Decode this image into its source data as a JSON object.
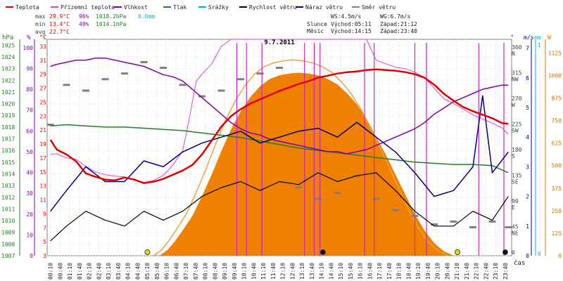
{
  "chart_data": {
    "type": "line",
    "title": "9.7.2011",
    "xlabel": "čas",
    "x_ticks": [
      "00:10",
      "00:40",
      "01:10",
      "01:40",
      "02:10",
      "02:40",
      "03:10",
      "03:40",
      "04:10",
      "04:40",
      "05:10",
      "05:40",
      "06:10",
      "06:40",
      "07:10",
      "07:40",
      "08:10",
      "08:40",
      "09:10",
      "09:40",
      "10:10",
      "10:40",
      "11:10",
      "11:40",
      "12:10",
      "12:40",
      "13:10",
      "13:40",
      "14:10",
      "14:40",
      "15:10",
      "15:40",
      "16:10",
      "16:40",
      "17:10",
      "17:40",
      "18:10",
      "18:40",
      "19:10",
      "19:40",
      "20:10",
      "20:40",
      "21:10",
      "21:40",
      "22:10",
      "22:40",
      "23:10",
      "23:40"
    ],
    "legend": [
      {
        "name": "Teplota",
        "color": "#e00000"
      },
      {
        "name": "Přízemní teplota",
        "color": "#e040e0"
      },
      {
        "name": "Vlhkost",
        "color": "#8000b0"
      },
      {
        "name": "Tlak",
        "color": "#208020"
      },
      {
        "name": "Srážky",
        "color": "#00b0d0"
      },
      {
        "name": "Rychlost větru",
        "color": "#000000"
      },
      {
        "name": "Náraz větru",
        "color": "#000080"
      },
      {
        "name": "Směr větru",
        "color": "#808080"
      }
    ],
    "stats": {
      "max": {
        "label": "max",
        "temp": "29.9°C",
        "hum": "96%",
        "press": "1018.2hPa",
        "rain": "0.0mm"
      },
      "min": {
        "label": "min",
        "temp": "13.4°C",
        "hum": "49%",
        "press": "1014.1hPa"
      },
      "avg": {
        "label": "avg",
        "temp": "22.7°C"
      }
    },
    "wind_info": {
      "ws": "WS:4.5m/s",
      "wg": "WG:6.7m/s"
    },
    "sun": {
      "label": "Slunce",
      "rise": "Východ:05:11",
      "set": "Západ:21:12"
    },
    "moon": {
      "label": "Měsíc",
      "rise": "Východ:14:15",
      "set": "Západ:23:40"
    },
    "axes": {
      "hpa": {
        "label": "hPa",
        "ticks": [
          "1025",
          "1024",
          "1023",
          "1022",
          "1021",
          "1020",
          "1019",
          "1018",
          "1017",
          "1016",
          "1015",
          "1014",
          "1013",
          "1012",
          "1011",
          "1010",
          "1009",
          "1008",
          "1007"
        ],
        "range": [
          1007,
          1025.5
        ],
        "color": "#208020"
      },
      "pct": {
        "label": "%",
        "ticks": [
          "100",
          "90",
          "80",
          "70",
          "60",
          "50",
          "40",
          "30",
          "20",
          "10",
          "0"
        ],
        "range": [
          0,
          104
        ],
        "color": "#8000b0"
      },
      "degc": {
        "label": "°C",
        "ticks": [
          "33",
          "31",
          "29",
          "27",
          "25",
          "23",
          "21",
          "19",
          "17",
          "15",
          "13",
          "11",
          "9",
          "7",
          "5",
          "3"
        ],
        "range": [
          3,
          34
        ],
        "color": "#e00000"
      },
      "dir": {
        "label": "°",
        "ticks": [
          {
            "v": "360",
            "d": "N"
          },
          {
            "v": "315",
            "d": "NW"
          },
          {
            "v": "270",
            "d": "W"
          },
          {
            "v": "225",
            "d": "SW"
          },
          {
            "v": "180",
            "d": "S"
          },
          {
            "v": "135",
            "d": "SE"
          },
          {
            "v": "90",
            "d": "E"
          },
          {
            "v": "45",
            "d": "NE"
          },
          {
            "v": "0",
            "d": ""
          }
        ],
        "range": [
          0,
          380
        ],
        "color": "#404040"
      },
      "ms": {
        "label": "m/s",
        "ticks": [
          "7",
          "6",
          "5",
          "4",
          "3",
          "2",
          "1",
          "0"
        ],
        "range": [
          0,
          7.3
        ],
        "color": "#000080"
      },
      "mm": {
        "label": "mm",
        "ticks": [
          "1",
          "0"
        ],
        "color": "#00b0d0"
      },
      "wm2": {
        "label": "W",
        "ticks": [
          "1125",
          "1000",
          "875",
          "750",
          "625",
          "500",
          "375",
          "250",
          "125",
          "0"
        ],
        "range": [
          0,
          1200
        ],
        "color": "#e07000"
      }
    },
    "solar_curve_color": "#f4a040",
    "solar_fill_color": "#f08000",
    "series": {
      "temperature_c": [
        [
          0.17,
          19.6
        ],
        [
          0.5,
          18.2
        ],
        [
          1,
          17.5
        ],
        [
          1.5,
          16.5
        ],
        [
          2,
          14.8
        ],
        [
          2.5,
          14.3
        ],
        [
          3,
          13.9
        ],
        [
          3.5,
          13.8
        ],
        [
          4,
          14.2
        ],
        [
          4.5,
          13.9
        ],
        [
          5,
          13.4
        ],
        [
          5.5,
          13.6
        ],
        [
          6,
          14.0
        ],
        [
          6.5,
          14.6
        ],
        [
          7,
          15.2
        ],
        [
          7.5,
          16.0
        ],
        [
          8,
          17.5
        ],
        [
          8.5,
          19.5
        ],
        [
          9,
          21.5
        ],
        [
          9.5,
          23.0
        ],
        [
          10,
          24.0
        ],
        [
          10.5,
          24.8
        ],
        [
          11,
          25.4
        ],
        [
          11.5,
          26.0
        ],
        [
          12,
          26.6
        ],
        [
          12.5,
          27.1
        ],
        [
          13,
          27.6
        ],
        [
          13.5,
          28.0
        ],
        [
          14,
          28.5
        ],
        [
          14.5,
          28.8
        ],
        [
          15,
          29.1
        ],
        [
          15.5,
          29.3
        ],
        [
          16,
          29.4
        ],
        [
          16.5,
          29.6
        ],
        [
          17,
          29.7
        ],
        [
          17.5,
          29.6
        ],
        [
          18,
          29.5
        ],
        [
          18.5,
          29.3
        ],
        [
          19,
          29.0
        ],
        [
          19.5,
          28.5
        ],
        [
          20,
          27.5
        ],
        [
          20.5,
          26.2
        ],
        [
          21,
          25.2
        ],
        [
          21.5,
          24.3
        ],
        [
          22,
          23.7
        ],
        [
          22.5,
          23.2
        ],
        [
          23,
          22.7
        ],
        [
          23.5,
          22.0
        ],
        [
          23.83,
          21.9
        ]
      ],
      "ground_temp_c": [
        [
          0.17,
          17.5
        ],
        [
          0.5,
          17.6
        ],
        [
          1,
          17.0
        ],
        [
          1.5,
          16.8
        ],
        [
          2,
          15.8
        ],
        [
          2.5,
          15.0
        ],
        [
          3,
          14.6
        ],
        [
          3.5,
          14.4
        ],
        [
          4,
          14.3
        ],
        [
          4.5,
          13.8
        ],
        [
          5,
          13.5
        ],
        [
          5.5,
          13.8
        ],
        [
          6,
          14.5
        ],
        [
          6.5,
          16.0
        ],
        [
          7,
          18.0
        ],
        [
          7.3,
          22.0
        ],
        [
          7.7,
          28.0
        ],
        [
          8,
          29.0
        ],
        [
          8.5,
          30.5
        ],
        [
          9,
          33.0
        ],
        [
          9.5,
          34.0
        ],
        [
          10,
          34.0
        ],
        [
          11,
          34.0
        ],
        [
          12,
          34.0
        ],
        [
          13,
          34.0
        ],
        [
          14,
          34.0
        ],
        [
          15,
          34.0
        ],
        [
          16,
          34.0
        ],
        [
          16.5,
          34.0
        ],
        [
          17,
          31.0
        ],
        [
          17.5,
          30.5
        ],
        [
          18,
          30.0
        ],
        [
          18.5,
          29.8
        ],
        [
          19,
          29.3
        ],
        [
          19.5,
          28.5
        ],
        [
          20,
          27.0
        ],
        [
          20.5,
          25.5
        ],
        [
          21,
          24.8
        ],
        [
          21.5,
          24.0
        ],
        [
          22,
          23.2
        ],
        [
          22.5,
          22.6
        ],
        [
          23,
          22.0
        ],
        [
          23.5,
          21.3
        ],
        [
          23.83,
          20.4
        ]
      ],
      "humidity_pct": [
        [
          0.17,
          91
        ],
        [
          0.5,
          92
        ],
        [
          1,
          93
        ],
        [
          1.5,
          94
        ],
        [
          2,
          94
        ],
        [
          2.5,
          95
        ],
        [
          3,
          95
        ],
        [
          3.5,
          94
        ],
        [
          4,
          93
        ],
        [
          4.5,
          92
        ],
        [
          5,
          91
        ],
        [
          5.5,
          89
        ],
        [
          6,
          87
        ],
        [
          6.5,
          86
        ],
        [
          7,
          84
        ],
        [
          7.5,
          80
        ],
        [
          8,
          76
        ],
        [
          8.5,
          72
        ],
        [
          9,
          68
        ],
        [
          9.5,
          64
        ],
        [
          10,
          61
        ],
        [
          10.5,
          59
        ],
        [
          11,
          58
        ],
        [
          11.5,
          56
        ],
        [
          12,
          55
        ],
        [
          12.5,
          54
        ],
        [
          13,
          53
        ],
        [
          13.5,
          52
        ],
        [
          14,
          51
        ],
        [
          14.5,
          50
        ],
        [
          15,
          50
        ],
        [
          15.5,
          49
        ],
        [
          16,
          50
        ],
        [
          16.5,
          51
        ],
        [
          17,
          53
        ],
        [
          17.5,
          55
        ],
        [
          18,
          57
        ],
        [
          18.5,
          59
        ],
        [
          19,
          61
        ],
        [
          19.5,
          64
        ],
        [
          20,
          68
        ],
        [
          20.5,
          71
        ],
        [
          21,
          74
        ],
        [
          21.5,
          76
        ],
        [
          22,
          78
        ],
        [
          22.5,
          80
        ],
        [
          23,
          81
        ],
        [
          23.5,
          82
        ],
        [
          23.83,
          82
        ]
      ],
      "pressure_hpa": [
        [
          0.17,
          1018.1
        ],
        [
          1,
          1018.2
        ],
        [
          2,
          1018.1
        ],
        [
          3,
          1018.0
        ],
        [
          4,
          1018.0
        ],
        [
          5,
          1017.9
        ],
        [
          6,
          1017.8
        ],
        [
          7,
          1017.7
        ],
        [
          8,
          1017.5
        ],
        [
          9,
          1017.3
        ],
        [
          10,
          1017.1
        ],
        [
          11,
          1016.8
        ],
        [
          12,
          1016.5
        ],
        [
          13,
          1016.2
        ],
        [
          14,
          1016.0
        ],
        [
          15,
          1015.8
        ],
        [
          16,
          1015.6
        ],
        [
          17,
          1015.4
        ],
        [
          18,
          1015.2
        ],
        [
          19,
          1015.0
        ],
        [
          20,
          1014.9
        ],
        [
          21,
          1014.8
        ],
        [
          22,
          1014.8
        ],
        [
          23,
          1014.7
        ],
        [
          23.83,
          1014.1
        ]
      ],
      "solar_w_m2": [
        [
          5.8,
          0
        ],
        [
          6.2,
          30
        ],
        [
          6.6,
          80
        ],
        [
          7,
          140
        ],
        [
          7.5,
          220
        ],
        [
          8,
          330
        ],
        [
          8.5,
          450
        ],
        [
          9,
          580
        ],
        [
          9.5,
          700
        ],
        [
          10,
          800
        ],
        [
          10.5,
          880
        ],
        [
          11,
          940
        ],
        [
          11.5,
          980
        ],
        [
          12,
          1000
        ],
        [
          12.5,
          1010
        ],
        [
          13,
          1015
        ],
        [
          13.5,
          1010
        ],
        [
          14,
          1000
        ],
        [
          14.5,
          980
        ],
        [
          15,
          950
        ],
        [
          15.5,
          900
        ],
        [
          16,
          840
        ],
        [
          16.5,
          760
        ],
        [
          17,
          660
        ],
        [
          17.5,
          560
        ],
        [
          18,
          450
        ],
        [
          18.5,
          340
        ],
        [
          19,
          230
        ],
        [
          19.5,
          140
        ],
        [
          20,
          70
        ],
        [
          20.5,
          25
        ],
        [
          21,
          0
        ]
      ],
      "wind_speed_ms": [
        [
          0.17,
          0.5
        ],
        [
          1,
          1.0
        ],
        [
          2,
          1.5
        ],
        [
          3,
          1.2
        ],
        [
          4,
          1.0
        ],
        [
          5,
          1.5
        ],
        [
          6,
          1.2
        ],
        [
          7,
          1.5
        ],
        [
          8,
          2.0
        ],
        [
          9,
          2.3
        ],
        [
          10,
          2.5
        ],
        [
          11,
          2.2
        ],
        [
          12,
          2.5
        ],
        [
          13,
          2.4
        ],
        [
          14,
          2.8
        ],
        [
          15,
          2.5
        ],
        [
          16,
          2.7
        ],
        [
          17,
          2.8
        ],
        [
          18,
          2.2
        ],
        [
          19,
          1.5
        ],
        [
          20,
          1.0
        ],
        [
          21,
          1.0
        ],
        [
          22,
          1.5
        ],
        [
          23,
          1.2
        ],
        [
          23.83,
          2.0
        ]
      ],
      "wind_gust_ms": [
        [
          0.17,
          1.5
        ],
        [
          1,
          2.2
        ],
        [
          2,
          3.0
        ],
        [
          3,
          2.5
        ],
        [
          4,
          2.5
        ],
        [
          5,
          3.2
        ],
        [
          6,
          3.0
        ],
        [
          7,
          3.5
        ],
        [
          8,
          3.8
        ],
        [
          9,
          4.0
        ],
        [
          10,
          4.2
        ],
        [
          11,
          3.8
        ],
        [
          12,
          4.0
        ],
        [
          13,
          4.2
        ],
        [
          14,
          4.3
        ],
        [
          15,
          4.0
        ],
        [
          16,
          4.5
        ],
        [
          17,
          4.0
        ],
        [
          18,
          3.5
        ],
        [
          19,
          2.8
        ],
        [
          20,
          2.0
        ],
        [
          21,
          2.2
        ],
        [
          22,
          3.0
        ],
        [
          22.5,
          5.4
        ],
        [
          23,
          2.8
        ],
        [
          23.83,
          3.5
        ]
      ],
      "wind_dir_deg": [
        [
          0.17,
          230
        ],
        [
          1,
          300
        ],
        [
          2,
          290
        ],
        [
          3,
          310
        ],
        [
          4,
          320
        ],
        [
          5,
          340
        ],
        [
          6,
          330
        ],
        [
          7,
          300
        ],
        [
          8,
          280
        ],
        [
          9,
          290
        ],
        [
          10,
          310
        ],
        [
          11,
          320
        ],
        [
          12,
          330
        ],
        [
          13,
          120
        ],
        [
          14,
          100
        ],
        [
          15,
          110
        ],
        [
          16,
          140
        ],
        [
          17,
          100
        ],
        [
          18,
          80
        ],
        [
          19,
          70
        ],
        [
          20,
          55
        ],
        [
          21,
          60
        ],
        [
          22,
          50
        ],
        [
          23,
          60
        ],
        [
          23.83,
          50
        ]
      ]
    },
    "ground_spike_hours": [
      9.8,
      10.3,
      11.1,
      13.3,
      13.8,
      14.1,
      16.4,
      16.9,
      19.0,
      19.6,
      22.3,
      23.6
    ],
    "markers": [
      {
        "hour": 5.18,
        "kind": "sunrise"
      },
      {
        "hour": 14.25,
        "kind": "moonrise"
      },
      {
        "hour": 21.2,
        "kind": "sunset"
      },
      {
        "hour": 23.67,
        "kind": "moonset"
      }
    ]
  }
}
